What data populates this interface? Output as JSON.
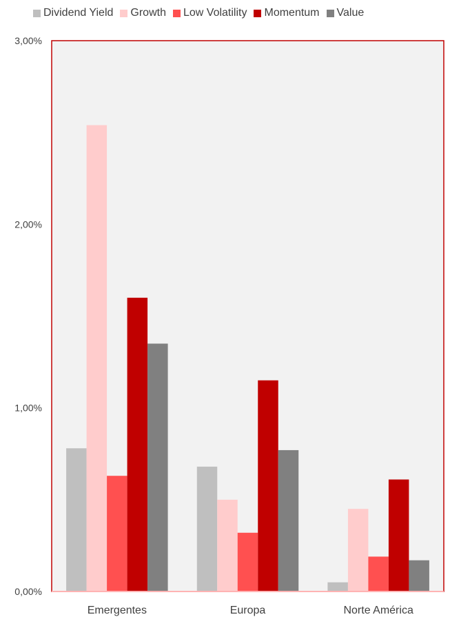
{
  "chart_data": {
    "type": "bar",
    "categories": [
      "Emergentes",
      "Europa",
      "Norte América"
    ],
    "series": [
      {
        "name": "Dividend Yield",
        "color": "#bfbfbf",
        "values": [
          0.78,
          0.68,
          0.05
        ]
      },
      {
        "name": "Growth",
        "color": "#ffcccc",
        "values": [
          2.54,
          0.5,
          0.45
        ]
      },
      {
        "name": "Low Volatility",
        "color": "#ff5050",
        "values": [
          0.63,
          0.32,
          0.19
        ]
      },
      {
        "name": "Momentum",
        "color": "#c00000",
        "values": [
          1.6,
          1.15,
          0.61
        ]
      },
      {
        "name": "Value",
        "color": "#808080",
        "values": [
          1.35,
          0.77,
          0.17
        ]
      }
    ],
    "ylim": [
      0,
      3
    ],
    "yticks": [
      {
        "value": 0,
        "label": "0,00%"
      },
      {
        "value": 1,
        "label": "1,00%"
      },
      {
        "value": 2,
        "label": "2,00%"
      },
      {
        "value": 3,
        "label": "3,00%"
      }
    ],
    "plot_background": "#f2f2f2",
    "plot_border_color": "#c00000",
    "legend_position": "top",
    "grid": false
  }
}
